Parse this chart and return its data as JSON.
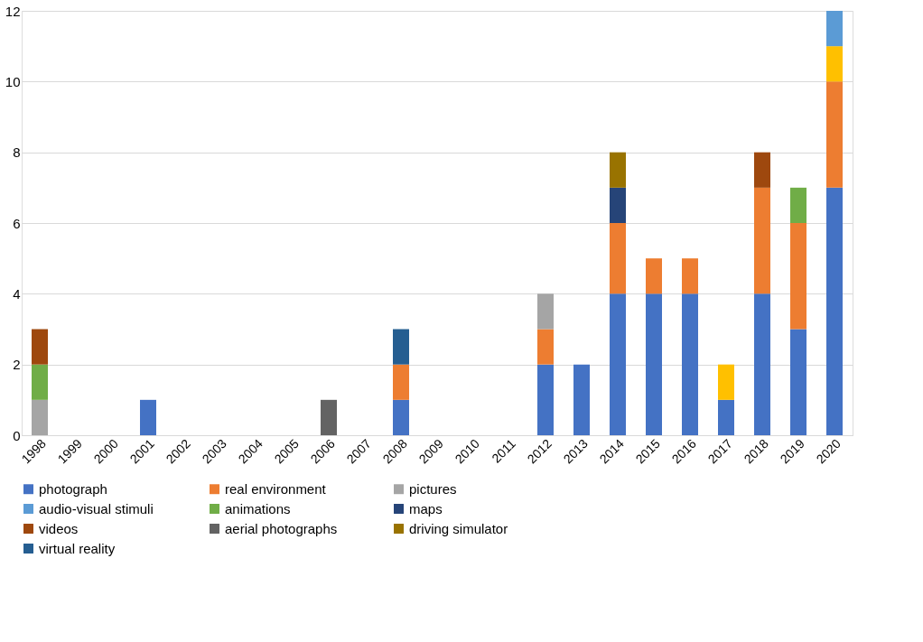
{
  "chart_data": {
    "type": "bar",
    "stacked": true,
    "categories": [
      "1998",
      "1999",
      "2000",
      "2001",
      "2002",
      "2003",
      "2004",
      "2005",
      "2006",
      "2007",
      "2008",
      "2009",
      "2010",
      "2011",
      "2012",
      "2013",
      "2014",
      "2015",
      "2016",
      "2017",
      "2018",
      "2019",
      "2020"
    ],
    "series": [
      {
        "name": "photograph",
        "color": "#4472c4",
        "values": [
          null,
          null,
          null,
          1,
          null,
          null,
          null,
          null,
          null,
          null,
          1,
          null,
          null,
          null,
          2,
          2,
          4,
          4,
          4,
          1,
          4,
          3,
          7
        ]
      },
      {
        "name": "real environment",
        "color": "#ed7d31",
        "values": [
          null,
          null,
          null,
          null,
          null,
          null,
          null,
          null,
          null,
          null,
          1,
          null,
          null,
          null,
          1,
          null,
          2,
          1,
          1,
          null,
          3,
          3,
          3
        ]
      },
      {
        "name": "pictures",
        "color": "#a5a5a5",
        "values": [
          1,
          null,
          null,
          null,
          null,
          null,
          null,
          null,
          null,
          null,
          null,
          null,
          null,
          null,
          1,
          null,
          null,
          null,
          null,
          null,
          null,
          null,
          null
        ]
      },
      {
        "color": "#ffc000",
        "values": [
          null,
          null,
          null,
          null,
          null,
          null,
          null,
          null,
          null,
          null,
          null,
          null,
          null,
          null,
          null,
          null,
          null,
          null,
          null,
          1,
          null,
          null,
          1
        ]
      },
      {
        "name": "audio-visual stimuli",
        "color": "#5b9bd5",
        "values": [
          null,
          null,
          null,
          null,
          null,
          null,
          null,
          null,
          null,
          null,
          null,
          null,
          null,
          null,
          null,
          null,
          null,
          null,
          null,
          null,
          null,
          null,
          1
        ]
      },
      {
        "name": "animations",
        "color": "#70ad47",
        "values": [
          1,
          null,
          null,
          null,
          null,
          null,
          null,
          null,
          null,
          null,
          null,
          null,
          null,
          null,
          null,
          null,
          null,
          null,
          null,
          null,
          null,
          1,
          null
        ]
      },
      {
        "name": "maps",
        "color": "#264478",
        "values": [
          null,
          null,
          null,
          null,
          null,
          null,
          null,
          null,
          null,
          null,
          null,
          null,
          null,
          null,
          null,
          null,
          1,
          null,
          null,
          null,
          null,
          null,
          null
        ]
      },
      {
        "name": "videos",
        "color": "#9e480e",
        "values": [
          1,
          null,
          null,
          null,
          null,
          null,
          null,
          null,
          null,
          null,
          null,
          null,
          null,
          null,
          null,
          null,
          null,
          null,
          null,
          null,
          1,
          null,
          null
        ]
      },
      {
        "name": "aerial photographs",
        "color": "#636363",
        "values": [
          null,
          null,
          null,
          null,
          null,
          null,
          null,
          null,
          1,
          null,
          null,
          null,
          null,
          null,
          null,
          null,
          null,
          null,
          null,
          null,
          null,
          null,
          null
        ]
      },
      {
        "name": "driving simulator",
        "color": "#997300",
        "values": [
          null,
          null,
          null,
          null,
          null,
          null,
          null,
          null,
          null,
          null,
          null,
          null,
          null,
          null,
          null,
          null,
          1,
          null,
          null,
          null,
          null,
          null,
          null
        ]
      },
      {
        "name": "virtual reality",
        "color": "#255e91",
        "values": [
          null,
          null,
          null,
          null,
          null,
          null,
          null,
          null,
          null,
          null,
          1,
          null,
          null,
          null,
          null,
          null,
          null,
          null,
          null,
          null,
          null,
          null,
          null
        ]
      }
    ],
    "ylim": [
      0,
      12
    ],
    "yticks": [
      0,
      2,
      4,
      6,
      8,
      10,
      12
    ],
    "grid": "y",
    "legend": "bottom"
  }
}
